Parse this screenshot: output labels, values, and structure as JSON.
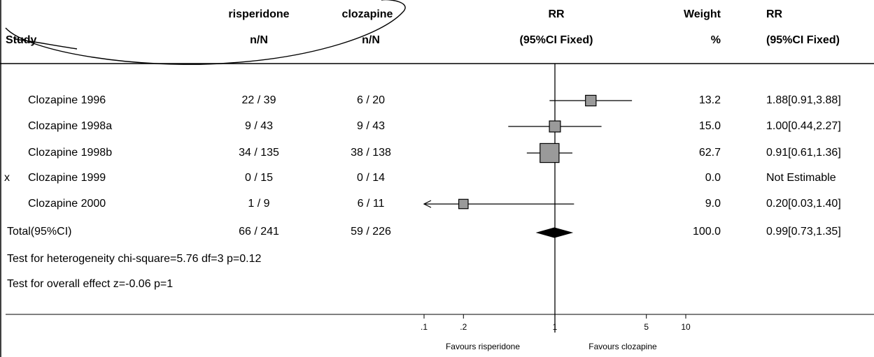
{
  "header": {
    "top_cut_text": "",
    "study_label": "Study",
    "risperidone_label": "risperidone",
    "risperidone_nN": "n/N",
    "clozapine_label": "clozapine",
    "clozapine_nN": "n/N",
    "rr_label": "RR",
    "rr_sub": "(95%CI Fixed)",
    "weight_label": "Weight",
    "weight_sub": "%",
    "rr2_label": "RR",
    "rr2_sub": "(95%CI Fixed)"
  },
  "rows": [
    {
      "marker": "",
      "study": "Clozapine 1996",
      "risperidone": "22 / 39",
      "clozapine": "6 / 20",
      "weight": "13.2",
      "rr_text": "1.88[0.91,3.88]"
    },
    {
      "marker": "",
      "study": "Clozapine 1998a",
      "risperidone": "9 / 43",
      "clozapine": "9 / 43",
      "weight": "15.0",
      "rr_text": "1.00[0.44,2.27]"
    },
    {
      "marker": "",
      "study": "Clozapine 1998b",
      "risperidone": "34 / 135",
      "clozapine": "38 / 138",
      "weight": "62.7",
      "rr_text": "0.91[0.61,1.36]"
    },
    {
      "marker": "x",
      "study": "Clozapine 1999",
      "risperidone": "0 / 15",
      "clozapine": "0 / 14",
      "weight": "0.0",
      "rr_text": "Not Estimable"
    },
    {
      "marker": "",
      "study": "Clozapine 2000",
      "risperidone": "1 / 9",
      "clozapine": "6 / 11",
      "weight": "9.0",
      "rr_text": "0.20[0.03,1.40]"
    }
  ],
  "total": {
    "label": "Total(95%CI)",
    "risperidone": "66 / 241",
    "clozapine": "59 / 226",
    "weight": "100.0",
    "rr_text": "0.99[0.73,1.35]"
  },
  "tests": {
    "heterogeneity": "Test for heterogeneity chi-square=5.76  df=3  p=0.12",
    "overall": "Test for overall effect  z=-0.06  p=1"
  },
  "axis": {
    "tick_labels": [
      ".1",
      ".2",
      "1",
      "5",
      "10"
    ],
    "favours_left": "Favours risperidone",
    "favours_right": "Favours clozapine"
  },
  "chart_data": {
    "type": "forest",
    "scale": "log",
    "xlim": [
      0.1,
      10
    ],
    "reference_line": 1,
    "ticks": [
      0.1,
      0.2,
      1,
      5,
      10
    ],
    "studies": [
      {
        "name": "Clozapine 1996",
        "rr": 1.88,
        "lower": 0.91,
        "upper": 3.88,
        "weight": 13.2,
        "estimable": true
      },
      {
        "name": "Clozapine 1998a",
        "rr": 1.0,
        "lower": 0.44,
        "upper": 2.27,
        "weight": 15.0,
        "estimable": true
      },
      {
        "name": "Clozapine 1998b",
        "rr": 0.91,
        "lower": 0.61,
        "upper": 1.36,
        "weight": 62.7,
        "estimable": true
      },
      {
        "name": "Clozapine 1999",
        "rr": null,
        "lower": null,
        "upper": null,
        "weight": 0.0,
        "estimable": false
      },
      {
        "name": "Clozapine 2000",
        "rr": 0.2,
        "lower": 0.03,
        "upper": 1.4,
        "weight": 9.0,
        "estimable": true
      }
    ],
    "total": {
      "rr": 0.99,
      "lower": 0.73,
      "upper": 1.35
    }
  }
}
